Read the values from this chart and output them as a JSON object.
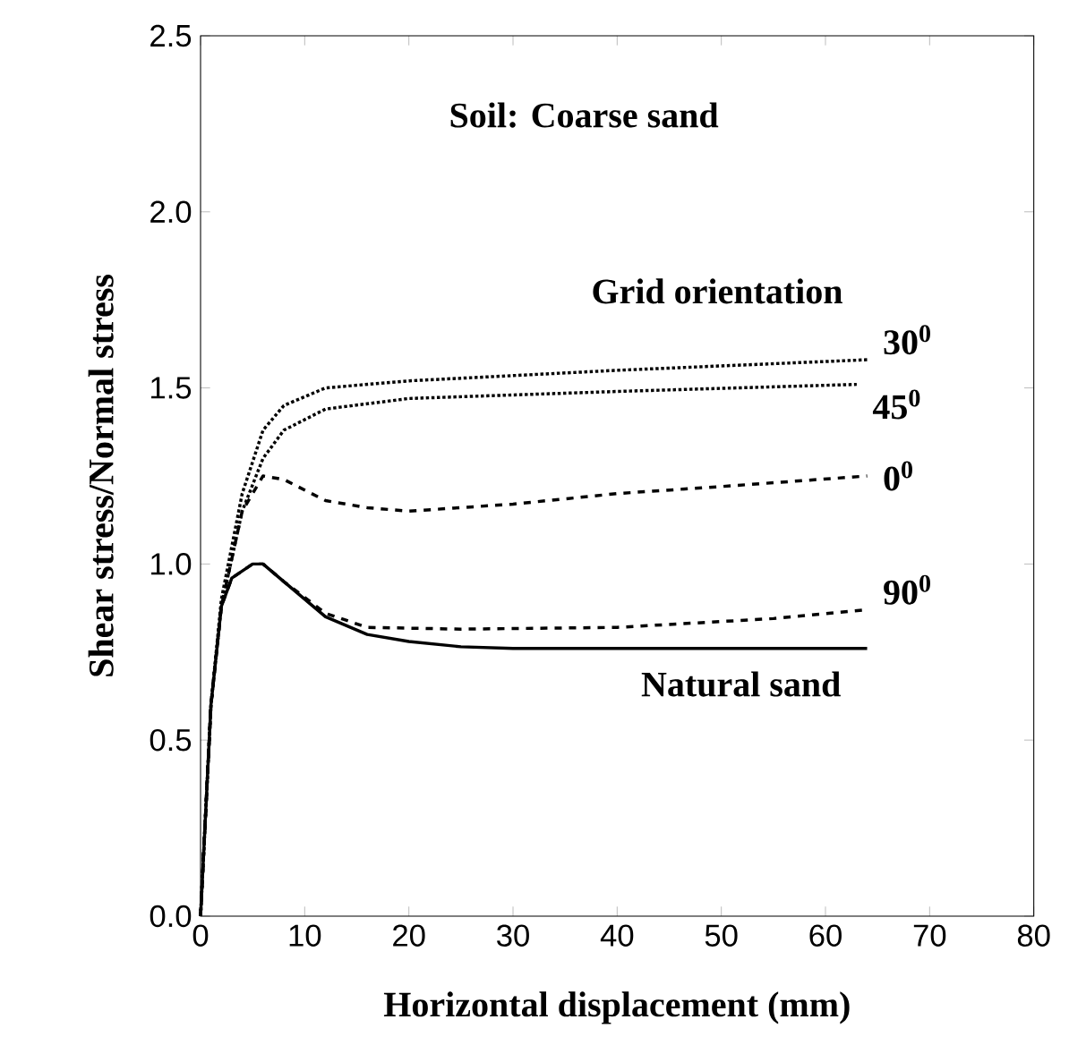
{
  "chart_data": {
    "type": "line",
    "xlabel": "Horizontal displacement (mm)",
    "ylabel": "Shear stress/Normal stress",
    "annotations": [
      "Soil: Coarse sand",
      "Grid orientation"
    ],
    "xlim": [
      0,
      80
    ],
    "xticks": [
      0,
      10,
      20,
      30,
      40,
      50,
      60,
      70,
      80
    ],
    "ylim": [
      0,
      2.5
    ],
    "yticks": [
      {
        "value": 0,
        "label": "0.0"
      },
      {
        "value": 0.5,
        "label": "0.5"
      },
      {
        "value": 1,
        "label": "1.0"
      },
      {
        "value": 1.5,
        "label": "1.5"
      },
      {
        "value": 2,
        "label": "2.0"
      },
      {
        "value": 2.5,
        "label": "2.5"
      }
    ],
    "grid": false,
    "legend": false,
    "series": [
      {
        "name": "30$^{0}$",
        "color": "#000000",
        "line_style": "dotted",
        "x": [
          0,
          1,
          2,
          4,
          6,
          8,
          12,
          20,
          40,
          64
        ],
        "values": [
          0,
          0.6,
          0.9,
          1.2,
          1.38,
          1.45,
          1.5,
          1.52,
          1.55,
          1.58
        ]
      },
      {
        "name": "45$^{0}$",
        "color": "#000000",
        "line_style": "dotted",
        "x": [
          0,
          1,
          2,
          4,
          6,
          8,
          12,
          20,
          40,
          63
        ],
        "values": [
          0,
          0.6,
          0.88,
          1.15,
          1.3,
          1.38,
          1.44,
          1.47,
          1.49,
          1.51
        ]
      },
      {
        "name": "0$^{0}$",
        "color": "#000000",
        "line_style": "dashed",
        "x": [
          0,
          1,
          2,
          4,
          6,
          8,
          12,
          16,
          20,
          30,
          40,
          50,
          64
        ],
        "values": [
          0,
          0.6,
          0.88,
          1.15,
          1.25,
          1.24,
          1.18,
          1.16,
          1.15,
          1.17,
          1.2,
          1.22,
          1.25
        ]
      },
      {
        "name": "90$^{0}$",
        "color": "#000000",
        "line_style": "dashed",
        "x": [
          0,
          1,
          2,
          3,
          5,
          6,
          8,
          12,
          16,
          25,
          40,
          55,
          64
        ],
        "values": [
          0,
          0.6,
          0.88,
          0.96,
          1.0,
          1.0,
          0.95,
          0.86,
          0.82,
          0.815,
          0.82,
          0.845,
          0.87
        ]
      },
      {
        "name": "Natural sand",
        "color": "#000000",
        "line_style": "solid",
        "x": [
          0,
          1,
          2,
          3,
          5,
          6,
          8,
          12,
          16,
          20,
          25,
          30,
          64
        ],
        "values": [
          0,
          0.6,
          0.88,
          0.96,
          1.0,
          1.0,
          0.95,
          0.85,
          0.8,
          0.78,
          0.765,
          0.76,
          0.76
        ]
      }
    ]
  }
}
